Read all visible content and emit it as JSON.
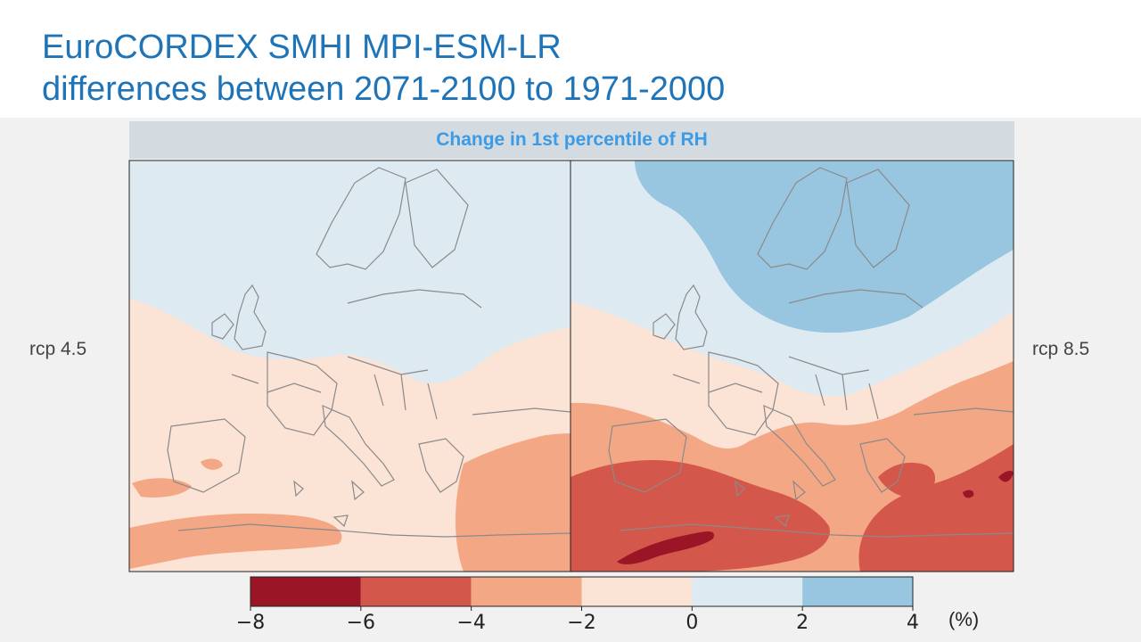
{
  "slide": {
    "title_line1": "EuroCORDEX SMHI MPI-ESM-LR",
    "title_line2": "differences between 2071-2100 to 1971-2000",
    "panel_header": "Change in 1st percentile of RH",
    "left_label": "rcp 4.5",
    "right_label": "rcp 8.5",
    "unit": "(%)"
  },
  "colorbar": {
    "ticks": [
      "−8",
      "−6",
      "−4",
      "−2",
      "0",
      "2",
      "4"
    ],
    "bins": [
      {
        "from": -8,
        "to": -6,
        "color": "#9a1525"
      },
      {
        "from": -6,
        "to": -4,
        "color": "#d4574b"
      },
      {
        "from": -4,
        "to": -2,
        "color": "#f3a784"
      },
      {
        "from": -2,
        "to": 0,
        "color": "#fbe3d6"
      },
      {
        "from": 0,
        "to": 2,
        "color": "#deeaf2"
      },
      {
        "from": 2,
        "to": 4,
        "color": "#98c6e0"
      }
    ]
  }
}
